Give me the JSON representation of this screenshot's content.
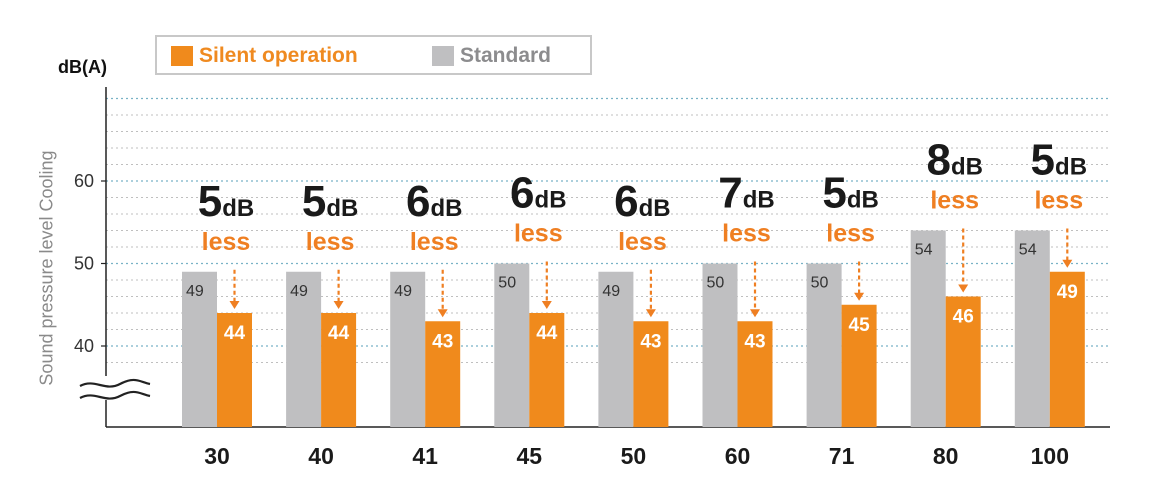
{
  "legend": {
    "silent_label": "Silent operation",
    "standard_label": "Standard"
  },
  "colors": {
    "silent": "#f08a1c",
    "standard": "#bfbfc1",
    "silent_text": "#ef8a20",
    "standard_text": "#8c8c8e"
  },
  "chart_data": {
    "type": "bar",
    "ylabel": "Sound pressure level Cooling",
    "unit_label": "dB(A)",
    "yticks": [
      40,
      50,
      60
    ],
    "ylim": [
      32,
      70
    ],
    "axis_break": true,
    "grid": "dotted horizontal",
    "legend_position": "top-left",
    "categories": [
      "30",
      "40",
      "41",
      "45",
      "50",
      "60",
      "71",
      "80",
      "100"
    ],
    "series": [
      {
        "name": "Standard",
        "values": [
          49,
          49,
          49,
          50,
          49,
          50,
          50,
          54,
          54
        ]
      },
      {
        "name": "Silent operation",
        "values": [
          44,
          44,
          43,
          44,
          43,
          43,
          45,
          46,
          49
        ]
      }
    ],
    "annotations": [
      {
        "number": "5",
        "unit": "dB",
        "text": "less"
      },
      {
        "number": "5",
        "unit": "dB",
        "text": "less"
      },
      {
        "number": "6",
        "unit": "dB",
        "text": "less"
      },
      {
        "number": "6",
        "unit": "dB",
        "text": "less"
      },
      {
        "number": "6",
        "unit": "dB",
        "text": "less"
      },
      {
        "number": "7",
        "unit": "dB",
        "text": "less"
      },
      {
        "number": "5",
        "unit": "dB",
        "text": "less"
      },
      {
        "number": "8",
        "unit": "dB",
        "text": "less"
      },
      {
        "number": "5",
        "unit": "dB",
        "text": "less"
      }
    ]
  }
}
